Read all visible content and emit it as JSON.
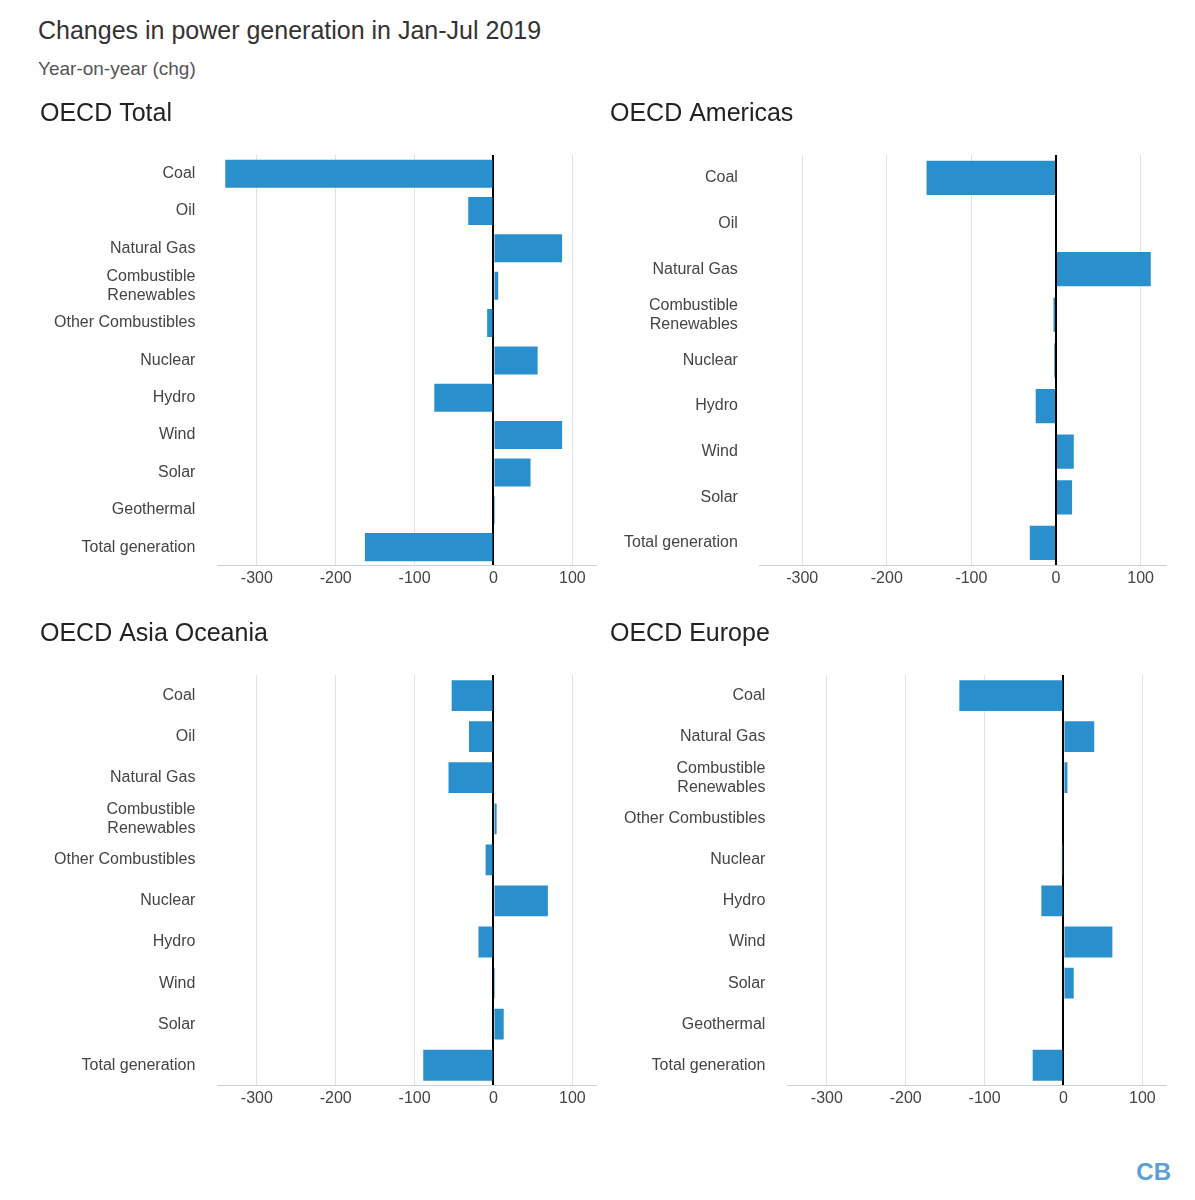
{
  "title": "Changes in power generation in Jan-Jul 2019",
  "subtitle": "Year-on-year (chg)",
  "logo_text": "CB",
  "chart_data": [
    {
      "type": "bar",
      "title": "OECD Total",
      "orientation": "horizontal",
      "grid": true,
      "data_labels": false,
      "color": "#2a8fcd",
      "categories": [
        "Coal",
        "Oil",
        "Natural Gas",
        "Combustible Renewables",
        "Other Combustibles",
        "Nuclear",
        "Hydro",
        "Wind",
        "Solar",
        "Geothermal",
        "Total generation"
      ],
      "values": [
        -340,
        -32,
        87,
        6,
        -8,
        56,
        -75,
        87,
        47,
        2,
        -163
      ],
      "xlim": [
        -350,
        130
      ],
      "xticks": [
        -300,
        -200,
        -100,
        0,
        100
      ]
    },
    {
      "type": "bar",
      "title": "OECD Americas",
      "orientation": "horizontal",
      "grid": true,
      "data_labels": false,
      "color": "#2a8fcd",
      "categories": [
        "Coal",
        "Oil",
        "Natural Gas",
        "Combustible Renewables",
        "Nuclear",
        "Hydro",
        "Wind",
        "Solar",
        "Total generation"
      ],
      "values": [
        -153,
        0,
        112,
        -3,
        -2,
        -24,
        21,
        19,
        -31
      ],
      "xlim": [
        -350,
        130
      ],
      "xticks": [
        -300,
        -200,
        -100,
        0,
        100
      ]
    },
    {
      "type": "bar",
      "title": "OECD Asia Oceania",
      "orientation": "horizontal",
      "grid": true,
      "data_labels": false,
      "color": "#2a8fcd",
      "categories": [
        "Coal",
        "Oil",
        "Natural Gas",
        "Combustible Renewables",
        "Other Combustibles",
        "Nuclear",
        "Hydro",
        "Wind",
        "Solar",
        "Total generation"
      ],
      "values": [
        -53,
        -31,
        -57,
        4,
        -10,
        69,
        -19,
        2,
        13,
        -89
      ],
      "xlim": [
        -350,
        130
      ],
      "xticks": [
        -300,
        -200,
        -100,
        0,
        100
      ]
    },
    {
      "type": "bar",
      "title": "OECD Europe",
      "orientation": "horizontal",
      "grid": true,
      "data_labels": false,
      "color": "#2a8fcd",
      "categories": [
        "Coal",
        "Natural Gas",
        "Combustible Renewables",
        "Other Combustibles",
        "Nuclear",
        "Hydro",
        "Wind",
        "Solar",
        "Geothermal",
        "Total generation"
      ],
      "values": [
        -132,
        39,
        5,
        0,
        -2,
        -28,
        62,
        13,
        0,
        -39
      ],
      "xlim": [
        -350,
        130
      ],
      "xticks": [
        -300,
        -200,
        -100,
        0,
        100
      ]
    }
  ]
}
